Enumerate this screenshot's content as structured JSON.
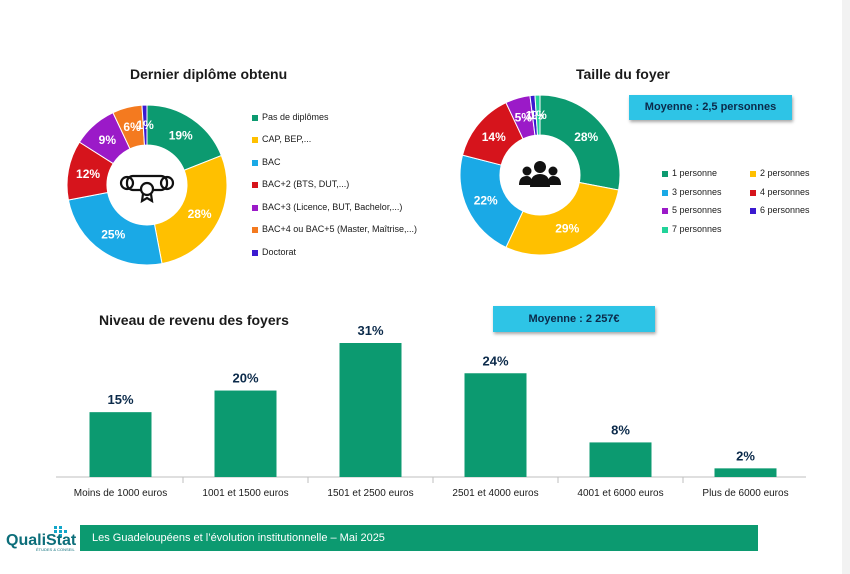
{
  "charts": {
    "diploma": {
      "title": "Dernier diplôme obtenu",
      "icon": "diploma-icon",
      "chart_data": {
        "type": "pie",
        "title": "Dernier diplôme obtenu",
        "categories": [
          "Pas de diplômes",
          "CAP, BEP,...",
          "BAC",
          "BAC+2 (BTS, DUT,...)",
          "BAC+3 (Licence, BUT, Bachelor,...)",
          "BAC+4 ou BAC+5 (Master, Maîtrise,...)",
          "Doctorat"
        ],
        "values": [
          19,
          28,
          25,
          12,
          9,
          6,
          1
        ],
        "labels": [
          "19%",
          "28%",
          "25%",
          "12%",
          "9%",
          "6%",
          "1%"
        ],
        "colors": [
          "#0c9a70",
          "#ffc000",
          "#1aa9e6",
          "#d6141c",
          "#9b1ac8",
          "#f47a1f",
          "#3b1ad0"
        ],
        "legend_position": "right"
      }
    },
    "household": {
      "title": "Taille du foyer",
      "icon": "people-group-icon",
      "average": "Moyenne : 2,5 personnes",
      "chart_data": {
        "type": "pie",
        "title": "Taille du foyer",
        "categories": [
          "1 personne",
          "2 personnes",
          "3 personnes",
          "4 personnes",
          "5 personnes",
          "6 personnes",
          "7 personnes"
        ],
        "values": [
          28,
          29,
          22,
          14,
          5,
          1,
          1
        ],
        "labels": [
          "28%",
          "29%",
          "22%",
          "14%",
          "5%",
          "1%",
          "1%"
        ],
        "colors": [
          "#0c9a70",
          "#ffc000",
          "#1aa9e6",
          "#d6141c",
          "#9b1ac8",
          "#3b1ad0",
          "#22d39a"
        ],
        "legend_position": "bottom-right"
      }
    },
    "income": {
      "title": "Niveau de revenu des foyers",
      "average": "Moyenne : 2 257€",
      "chart_data": {
        "type": "bar",
        "title": "Niveau de revenu des foyers",
        "categories": [
          "Moins de 1000 euros",
          "1001 et 1500 euros",
          "1501 et 2500 euros",
          "2501 et 4000 euros",
          "4001 et 6000 euros",
          "Plus de 6000 euros"
        ],
        "values": [
          15,
          20,
          31,
          24,
          8,
          2
        ],
        "labels": [
          "15%",
          "20%",
          "31%",
          "24%",
          "8%",
          "2%"
        ],
        "color": "#0c9a70",
        "ylim": [
          0,
          31
        ]
      }
    }
  },
  "footer": {
    "text": "Les Guadeloupéens et l’évolution institutionnelle – Mai  2025",
    "logo_text": "QualiStat",
    "logo_subtext": "ÉTUDES & CONSEIL"
  }
}
